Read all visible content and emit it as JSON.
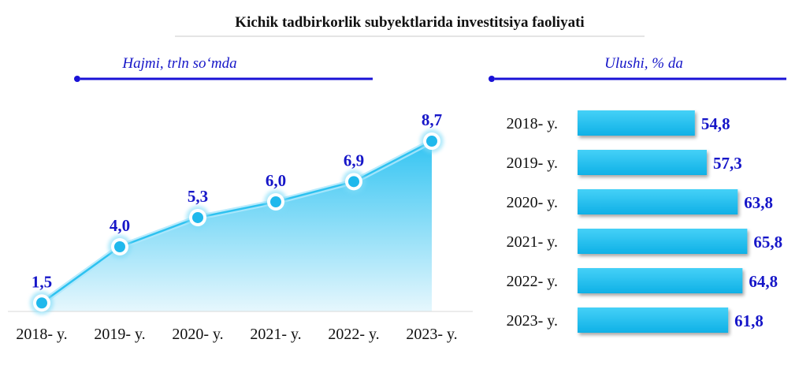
{
  "title": "Kichik tadbirkorlik subyektlarida investitsiya faoliyati",
  "colors": {
    "accent_blue": "#1a12d6",
    "label_blue": "#1616c8",
    "area_top": "#33c4f2",
    "area_bottom": "#e6f7fd",
    "bar_fill": "#18bdf0",
    "text_dark": "#111111"
  },
  "chart_data": [
    {
      "type": "area",
      "title": "Hajmi, trln so‘mda",
      "categories": [
        "2018- y.",
        "2019- y.",
        "2020- y.",
        "2021- y.",
        "2022- y.",
        "2023- y."
      ],
      "values": [
        1.5,
        4.0,
        5.3,
        6.0,
        6.9,
        8.7
      ],
      "value_labels": [
        "1,5",
        "4,0",
        "5,3",
        "6,0",
        "6,9",
        "8,7"
      ],
      "legend": "none",
      "grid": false
    },
    {
      "type": "bar",
      "orientation": "horizontal",
      "title": "Ulushi, % da",
      "categories": [
        "2018- y.",
        "2019- y.",
        "2020- y.",
        "2021- y.",
        "2022- y.",
        "2023- y."
      ],
      "values": [
        54.8,
        57.3,
        63.8,
        65.8,
        64.8,
        61.8
      ],
      "value_labels": [
        "54,8",
        "57,3",
        "63,8",
        "65,8",
        "64,8",
        "61,8"
      ],
      "legend": "none",
      "grid": false
    }
  ]
}
